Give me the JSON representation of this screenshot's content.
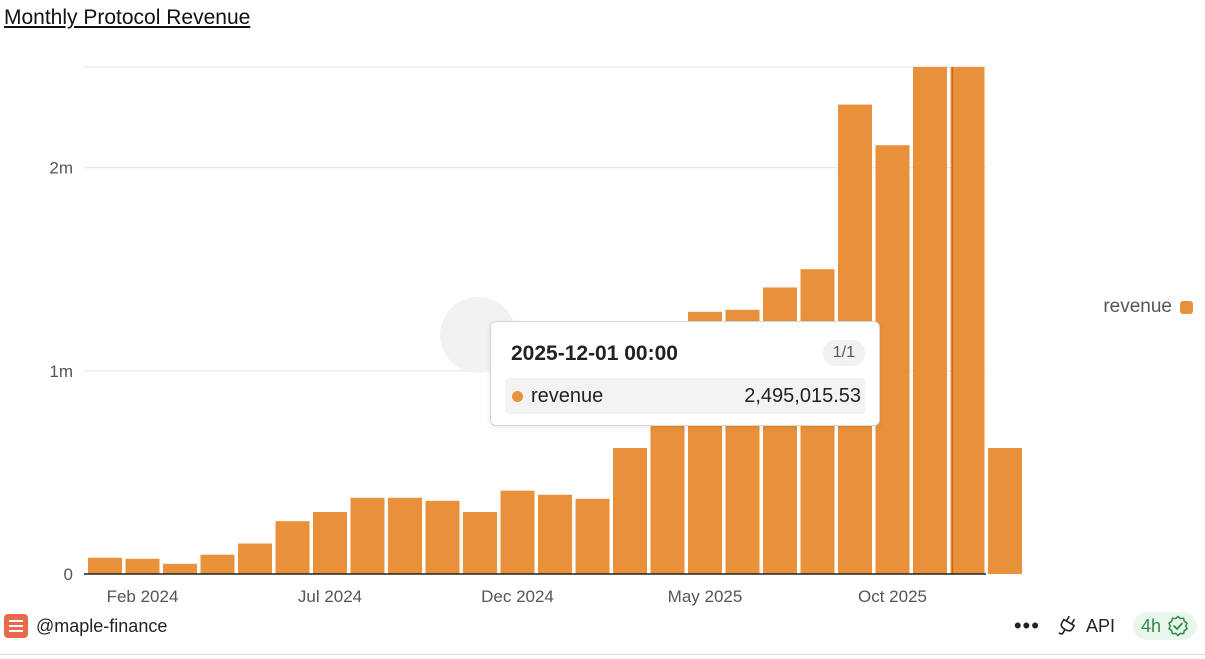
{
  "title": "Monthly Protocol Revenue",
  "chart_data": {
    "type": "bar",
    "title": "Monthly Protocol Revenue",
    "xlabel": "",
    "ylabel": "",
    "categories": [
      "2024-01",
      "2024-02",
      "2024-03",
      "2024-04",
      "2024-05",
      "2024-06",
      "2024-07",
      "2024-08",
      "2024-09",
      "2024-10",
      "2024-11",
      "2024-12",
      "2025-01",
      "2025-02",
      "2025-03",
      "2025-04",
      "2025-05",
      "2025-06",
      "2025-07",
      "2025-08",
      "2025-09",
      "2025-10",
      "2025-11",
      "2025-12",
      "2026-01"
    ],
    "series": [
      {
        "name": "revenue",
        "values": [
          80000,
          75000,
          50000,
          95000,
          150000,
          260000,
          305000,
          375000,
          375000,
          360000,
          305000,
          410000,
          390000,
          370000,
          620000,
          850000,
          1290000,
          1300000,
          1410000,
          1500000,
          2310000,
          2110000,
          2495015.53,
          2495015.53,
          620000
        ]
      }
    ],
    "ylim": [
      0,
      2495015.53
    ],
    "y_ticks": [
      {
        "value": 0,
        "label": "0"
      },
      {
        "value": 1000000,
        "label": "1m"
      },
      {
        "value": 2000000,
        "label": "2m"
      }
    ],
    "x_ticks": [
      {
        "index": 1,
        "label": "Feb 2024"
      },
      {
        "index": 6,
        "label": "Jul 2024"
      },
      {
        "index": 11,
        "label": "Dec 2024"
      },
      {
        "index": 16,
        "label": "May 2025"
      },
      {
        "index": 21,
        "label": "Oct 2025"
      }
    ],
    "highlight_index": 23,
    "grid": true,
    "legend": "right",
    "color": "#E8913A"
  },
  "legend": {
    "label": "revenue"
  },
  "tooltip": {
    "date": "2025-12-01 00:00",
    "count": "1/1",
    "series": "revenue",
    "value": "2,495,015.53"
  },
  "footer": {
    "author": "@maple-finance",
    "more": "•••",
    "api": "API",
    "age": "4h"
  }
}
